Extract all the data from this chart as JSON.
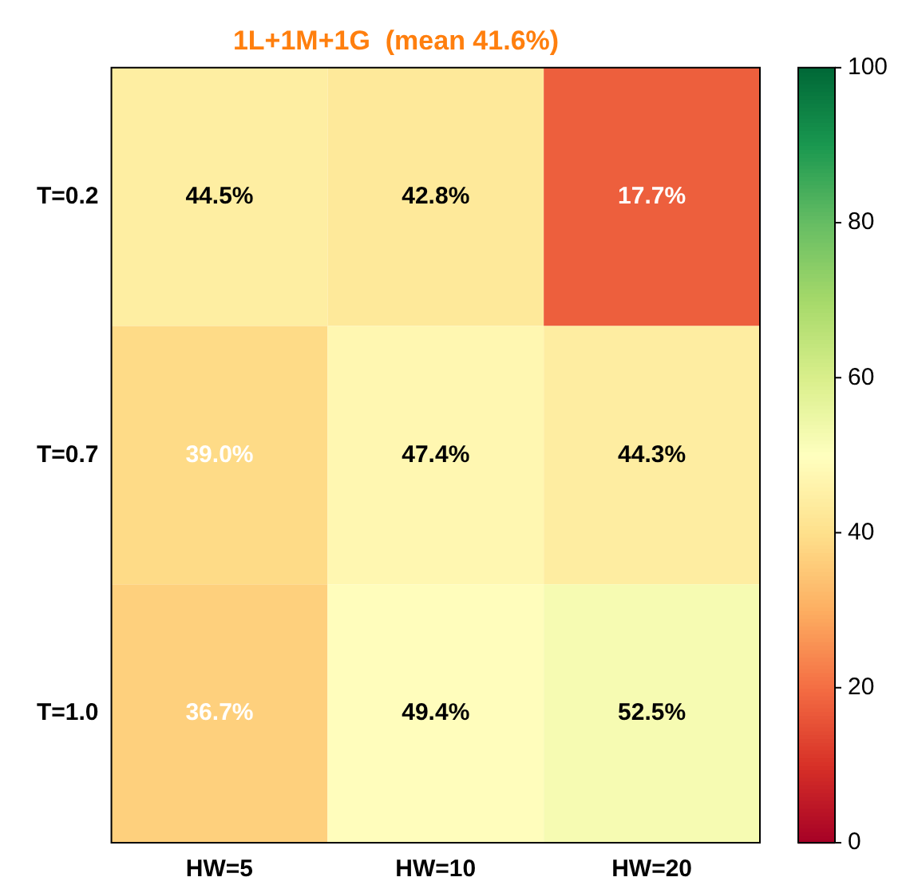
{
  "chart_data": {
    "type": "heatmap",
    "title": "1L+1M+1G  (mean 41.6%)",
    "categories": [
      "HW=5",
      "HW=10",
      "HW=20"
    ],
    "y_categories": [
      "T=0.2",
      "T=0.7",
      "T=1.0"
    ],
    "cells": [
      [
        44.5,
        42.8,
        17.7
      ],
      [
        39.0,
        47.4,
        44.3
      ],
      [
        36.7,
        49.4,
        52.5
      ]
    ],
    "cell_labels": [
      [
        "44.5%",
        "42.8%",
        "17.7%"
      ],
      [
        "39.0%",
        "47.4%",
        "44.3%"
      ],
      [
        "36.7%",
        "49.4%",
        "52.5%"
      ]
    ],
    "clim": [
      0,
      100
    ],
    "cticks": [
      0,
      20,
      40,
      60,
      80,
      100
    ],
    "grid": false,
    "legend": false
  }
}
